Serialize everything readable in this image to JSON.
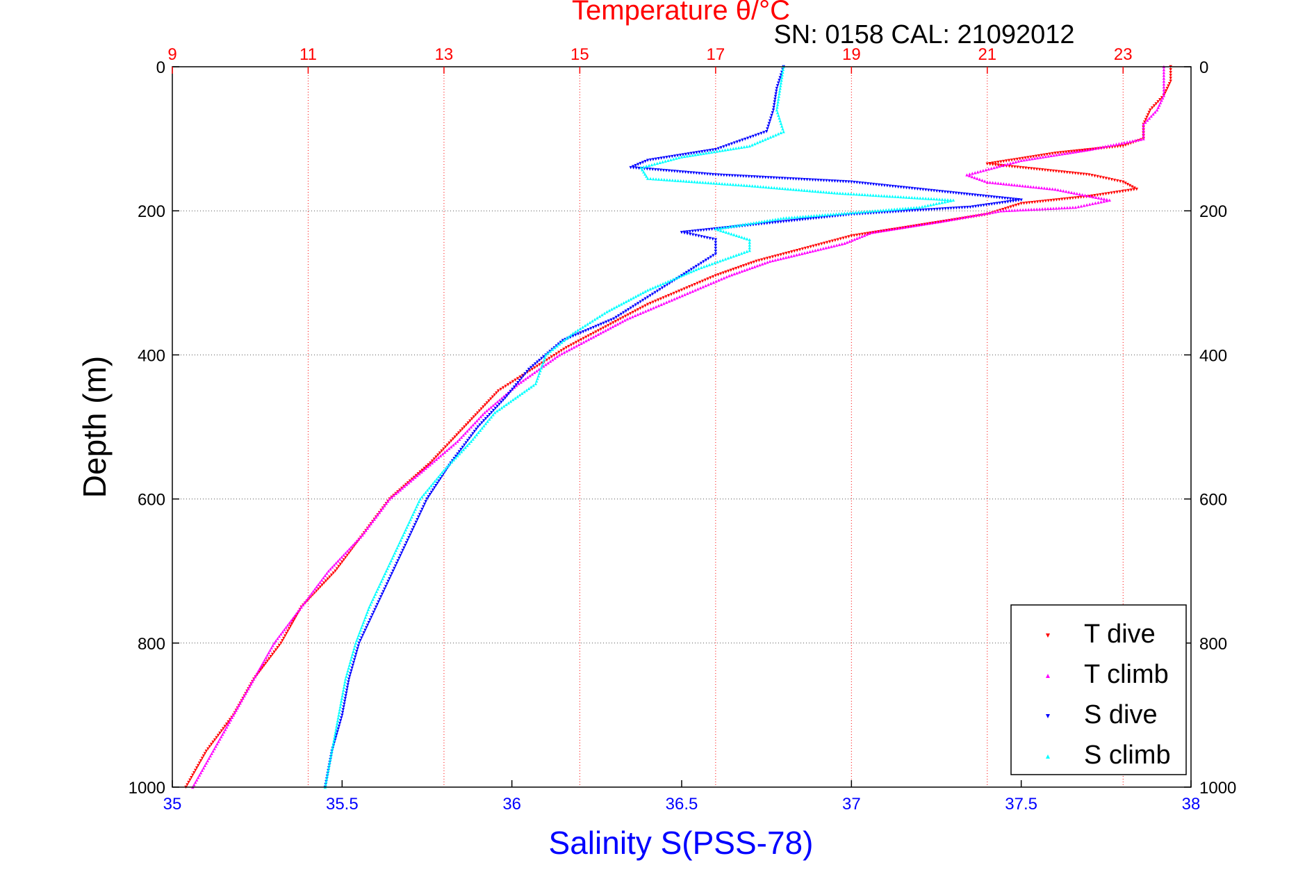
{
  "chart_data": {
    "type": "scatter",
    "title_top": "Temperature θ/°C",
    "annotation": "SN: 0158  CAL: 21092012",
    "ylabel": "Depth (m)",
    "xlabel": "Salinity S(PSS-78)",
    "y_range": [
      0,
      1000
    ],
    "y_reversed": true,
    "y_ticks": [
      "0",
      "200",
      "400",
      "600",
      "800",
      "1000"
    ],
    "temperature_range": [
      9,
      24
    ],
    "temperature_ticks": [
      "9",
      "11",
      "13",
      "15",
      "17",
      "19",
      "21",
      "23"
    ],
    "salinity_range": [
      35,
      38
    ],
    "salinity_ticks": [
      "35",
      "35.5",
      "36",
      "36.5",
      "37",
      "37.5",
      "38"
    ],
    "grid": true,
    "legend_position": "bottom-right",
    "colors": {
      "temperature_axis": "#ff0000",
      "salinity_axis": "#0000ff",
      "t_dive": "#ff0000",
      "t_climb": "#ff00ff",
      "s_dive": "#0000ff",
      "s_climb": "#00ffff"
    },
    "series": [
      {
        "name": "T dive",
        "axis": "temperature",
        "color": "#ff0000",
        "marker": "triangle-down",
        "points": [
          [
            23.7,
            0
          ],
          [
            23.7,
            20
          ],
          [
            23.6,
            40
          ],
          [
            23.4,
            60
          ],
          [
            23.3,
            80
          ],
          [
            23.3,
            100
          ],
          [
            23.0,
            110
          ],
          [
            22.0,
            120
          ],
          [
            21.0,
            135
          ],
          [
            22.5,
            150
          ],
          [
            23.0,
            160
          ],
          [
            23.2,
            170
          ],
          [
            22.5,
            180
          ],
          [
            21.5,
            190
          ],
          [
            21.0,
            205
          ],
          [
            20.0,
            220
          ],
          [
            19.0,
            235
          ],
          [
            18.4,
            250
          ],
          [
            17.6,
            270
          ],
          [
            17.0,
            290
          ],
          [
            16.5,
            310
          ],
          [
            16.0,
            330
          ],
          [
            15.6,
            350
          ],
          [
            15.2,
            370
          ],
          [
            14.8,
            390
          ],
          [
            14.3,
            420
          ],
          [
            13.8,
            450
          ],
          [
            13.3,
            500
          ],
          [
            12.8,
            550
          ],
          [
            12.2,
            600
          ],
          [
            11.8,
            650
          ],
          [
            11.4,
            700
          ],
          [
            10.9,
            750
          ],
          [
            10.6,
            800
          ],
          [
            10.2,
            850
          ],
          [
            9.9,
            900
          ],
          [
            9.5,
            950
          ],
          [
            9.2,
            1000
          ]
        ]
      },
      {
        "name": "T climb",
        "axis": "temperature",
        "color": "#ff00ff",
        "marker": "triangle-up",
        "points": [
          [
            23.6,
            0
          ],
          [
            23.6,
            20
          ],
          [
            23.6,
            40
          ],
          [
            23.5,
            60
          ],
          [
            23.3,
            80
          ],
          [
            23.3,
            100
          ],
          [
            22.5,
            115
          ],
          [
            21.5,
            130
          ],
          [
            20.7,
            150
          ],
          [
            21.0,
            160
          ],
          [
            22.0,
            170
          ],
          [
            22.8,
            185
          ],
          [
            22.3,
            195
          ],
          [
            21.2,
            200
          ],
          [
            20.3,
            215
          ],
          [
            19.3,
            230
          ],
          [
            18.9,
            245
          ],
          [
            17.8,
            270
          ],
          [
            17.2,
            290
          ],
          [
            16.7,
            310
          ],
          [
            16.2,
            330
          ],
          [
            15.7,
            350
          ],
          [
            15.2,
            375
          ],
          [
            14.7,
            400
          ],
          [
            14.1,
            440
          ],
          [
            13.6,
            480
          ],
          [
            13.2,
            520
          ],
          [
            12.7,
            560
          ],
          [
            12.2,
            600
          ],
          [
            11.8,
            650
          ],
          [
            11.3,
            700
          ],
          [
            10.9,
            750
          ],
          [
            10.5,
            800
          ],
          [
            10.2,
            850
          ],
          [
            9.9,
            900
          ],
          [
            9.6,
            950
          ],
          [
            9.3,
            1000
          ]
        ]
      },
      {
        "name": "S dive",
        "axis": "salinity",
        "color": "#0000ff",
        "marker": "triangle-down",
        "points": [
          [
            36.8,
            0
          ],
          [
            36.78,
            30
          ],
          [
            36.77,
            60
          ],
          [
            36.75,
            90
          ],
          [
            36.6,
            115
          ],
          [
            36.4,
            130
          ],
          [
            36.35,
            140
          ],
          [
            36.6,
            150
          ],
          [
            37.0,
            160
          ],
          [
            37.3,
            175
          ],
          [
            37.5,
            185
          ],
          [
            37.35,
            195
          ],
          [
            37.0,
            205
          ],
          [
            36.8,
            215
          ],
          [
            36.5,
            230
          ],
          [
            36.6,
            240
          ],
          [
            36.6,
            260
          ],
          [
            36.5,
            290
          ],
          [
            36.4,
            320
          ],
          [
            36.3,
            350
          ],
          [
            36.15,
            380
          ],
          [
            36.05,
            420
          ],
          [
            35.98,
            460
          ],
          [
            35.9,
            500
          ],
          [
            35.82,
            550
          ],
          [
            35.75,
            600
          ],
          [
            35.7,
            650
          ],
          [
            35.65,
            700
          ],
          [
            35.6,
            750
          ],
          [
            35.55,
            800
          ],
          [
            35.52,
            850
          ],
          [
            35.5,
            900
          ],
          [
            35.47,
            950
          ],
          [
            35.45,
            1000
          ]
        ]
      },
      {
        "name": "S climb",
        "axis": "salinity",
        "color": "#00ffff",
        "marker": "triangle-up",
        "points": [
          [
            36.8,
            0
          ],
          [
            36.79,
            30
          ],
          [
            36.78,
            60
          ],
          [
            36.8,
            90
          ],
          [
            36.7,
            110
          ],
          [
            36.5,
            125
          ],
          [
            36.38,
            140
          ],
          [
            36.4,
            155
          ],
          [
            36.7,
            165
          ],
          [
            36.95,
            175
          ],
          [
            37.3,
            185
          ],
          [
            37.2,
            195
          ],
          [
            36.8,
            210
          ],
          [
            36.6,
            225
          ],
          [
            36.7,
            240
          ],
          [
            36.7,
            255
          ],
          [
            36.55,
            280
          ],
          [
            36.4,
            310
          ],
          [
            36.28,
            340
          ],
          [
            36.18,
            370
          ],
          [
            36.1,
            400
          ],
          [
            36.07,
            440
          ],
          [
            35.95,
            480
          ],
          [
            35.88,
            520
          ],
          [
            35.8,
            560
          ],
          [
            35.73,
            600
          ],
          [
            35.68,
            650
          ],
          [
            35.63,
            700
          ],
          [
            35.58,
            750
          ],
          [
            35.54,
            800
          ],
          [
            35.51,
            850
          ],
          [
            35.49,
            900
          ],
          [
            35.47,
            950
          ],
          [
            35.45,
            1000
          ]
        ]
      }
    ],
    "legend": [
      "T dive",
      "T climb",
      "S dive",
      "S climb"
    ]
  }
}
